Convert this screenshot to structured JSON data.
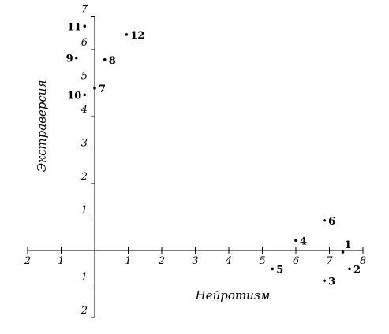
{
  "chart_data": {
    "type": "scatter",
    "title": "",
    "xlabel": "Нейротизм",
    "ylabel": "Экстраверсия",
    "xlim": [
      -2,
      8
    ],
    "ylim": [
      -2,
      7
    ],
    "x_ticks": [
      {
        "value": -2,
        "label": "2"
      },
      {
        "value": -1,
        "label": "1"
      },
      {
        "value": 1,
        "label": "1"
      },
      {
        "value": 2,
        "label": "2"
      },
      {
        "value": 3,
        "label": "3"
      },
      {
        "value": 4,
        "label": "4"
      },
      {
        "value": 5,
        "label": "5"
      },
      {
        "value": 6,
        "label": "6"
      },
      {
        "value": 7,
        "label": "7"
      },
      {
        "value": 8,
        "label": "8"
      }
    ],
    "y_ticks": [
      {
        "value": -2,
        "label": "2"
      },
      {
        "value": -1,
        "label": "1"
      },
      {
        "value": 1,
        "label": "1"
      },
      {
        "value": 2,
        "label": "2"
      },
      {
        "value": 3,
        "label": "3"
      },
      {
        "value": 4,
        "label": "4"
      },
      {
        "value": 5,
        "label": "5"
      },
      {
        "value": 6,
        "label": "6"
      },
      {
        "value": 7,
        "label": "7"
      }
    ],
    "grid": false,
    "points": [
      {
        "label": "1",
        "x": 7.4,
        "y": -0.05,
        "label_pos": "upper-right"
      },
      {
        "label": "2",
        "x": 7.6,
        "y": -0.55,
        "label_pos": "right"
      },
      {
        "label": "3",
        "x": 6.85,
        "y": -0.9,
        "label_pos": "right"
      },
      {
        "label": "4",
        "x": 6.0,
        "y": 0.3,
        "label_pos": "right"
      },
      {
        "label": "5",
        "x": 5.3,
        "y": -0.55,
        "label_pos": "right"
      },
      {
        "label": "6",
        "x": 6.85,
        "y": 0.9,
        "label_pos": "right"
      },
      {
        "label": "7",
        "x": 0.0,
        "y": 4.85,
        "label_pos": "right"
      },
      {
        "label": "8",
        "x": 0.3,
        "y": 5.7,
        "label_pos": "right"
      },
      {
        "label": "9",
        "x": -0.55,
        "y": 5.75,
        "label_pos": "left"
      },
      {
        "label": "10",
        "x": -0.3,
        "y": 4.65,
        "label_pos": "left"
      },
      {
        "label": "11",
        "x": -0.3,
        "y": 6.7,
        "label_pos": "left"
      },
      {
        "label": "12",
        "x": 0.95,
        "y": 6.45,
        "label_pos": "right"
      }
    ]
  }
}
